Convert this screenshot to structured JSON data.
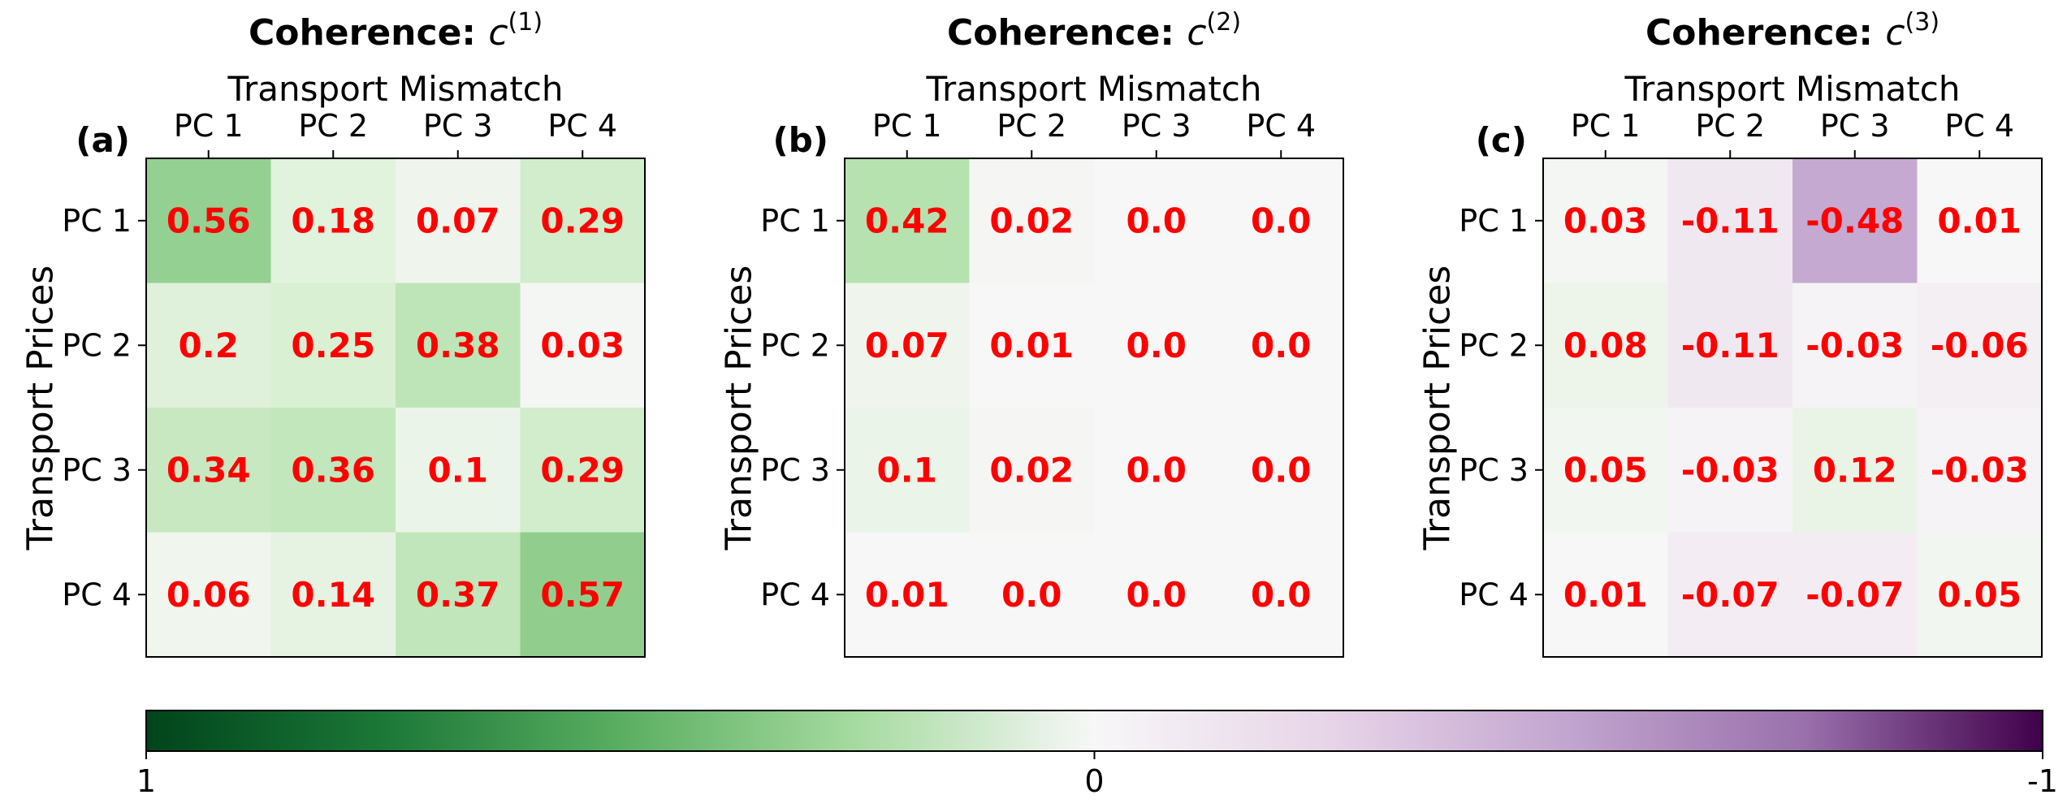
{
  "colors": {
    "text_values": "#ff0000",
    "positive_end": "#00441b",
    "zero": "#f7f7f7",
    "negative_end": "#40004b"
  },
  "colorbar": {
    "tick_labels": [
      "1",
      "0",
      "-1"
    ],
    "range": [
      1,
      -1
    ],
    "colormap": "PRGn reversed (green = 1, white = 0, purple = -1)"
  },
  "chart_data": [
    {
      "type": "heatmap",
      "panel_label": "(a)",
      "title_bold": "Coherence:",
      "title_math_symbol": "c",
      "title_math_superscript": "(1)",
      "xlabel": "Transport Mismatch",
      "ylabel": "Transport Prices",
      "x_categories": [
        "PC 1",
        "PC 2",
        "PC 3",
        "PC 4"
      ],
      "y_categories": [
        "PC 1",
        "PC 2",
        "PC 3",
        "PC 4"
      ],
      "values": [
        [
          0.56,
          0.18,
          0.07,
          0.29
        ],
        [
          0.2,
          0.25,
          0.38,
          0.03
        ],
        [
          0.34,
          0.36,
          0.1,
          0.29
        ],
        [
          0.06,
          0.14,
          0.37,
          0.57
        ]
      ],
      "labels": [
        [
          "0.56",
          "0.18",
          "0.07",
          "0.29"
        ],
        [
          "0.2",
          "0.25",
          "0.38",
          "0.03"
        ],
        [
          "0.34",
          "0.36",
          "0.1",
          "0.29"
        ],
        [
          "0.06",
          "0.14",
          "0.37",
          "0.57"
        ]
      ]
    },
    {
      "type": "heatmap",
      "panel_label": "(b)",
      "title_bold": "Coherence:",
      "title_math_symbol": "c",
      "title_math_superscript": "(2)",
      "xlabel": "Transport Mismatch",
      "ylabel": "Transport Prices",
      "x_categories": [
        "PC 1",
        "PC 2",
        "PC 3",
        "PC 4"
      ],
      "y_categories": [
        "PC 1",
        "PC 2",
        "PC 3",
        "PC 4"
      ],
      "values": [
        [
          0.42,
          0.02,
          0.0,
          0.0
        ],
        [
          0.07,
          0.01,
          0.0,
          0.0
        ],
        [
          0.1,
          0.02,
          0.0,
          0.0
        ],
        [
          0.01,
          0.0,
          0.0,
          0.0
        ]
      ],
      "labels": [
        [
          "0.42",
          "0.02",
          "0.0",
          "0.0"
        ],
        [
          "0.07",
          "0.01",
          "0.0",
          "0.0"
        ],
        [
          "0.1",
          "0.02",
          "0.0",
          "0.0"
        ],
        [
          "0.01",
          "0.0",
          "0.0",
          "0.0"
        ]
      ]
    },
    {
      "type": "heatmap",
      "panel_label": "(c)",
      "title_bold": "Coherence:",
      "title_math_symbol": "c",
      "title_math_superscript": "(3)",
      "xlabel": "Transport Mismatch",
      "ylabel": "Transport Prices",
      "x_categories": [
        "PC 1",
        "PC 2",
        "PC 3",
        "PC 4"
      ],
      "y_categories": [
        "PC 1",
        "PC 2",
        "PC 3",
        "PC 4"
      ],
      "values": [
        [
          0.03,
          -0.11,
          -0.48,
          0.01
        ],
        [
          0.08,
          -0.11,
          -0.03,
          -0.06
        ],
        [
          0.05,
          -0.03,
          0.12,
          -0.03
        ],
        [
          0.01,
          -0.07,
          -0.07,
          0.05
        ]
      ],
      "labels": [
        [
          "0.03",
          "-0.11",
          "-0.48",
          "0.01"
        ],
        [
          "0.08",
          "-0.11",
          "-0.03",
          "-0.06"
        ],
        [
          "0.05",
          "-0.03",
          "0.12",
          "-0.03"
        ],
        [
          "0.01",
          "-0.07",
          "-0.07",
          "0.05"
        ]
      ]
    }
  ]
}
